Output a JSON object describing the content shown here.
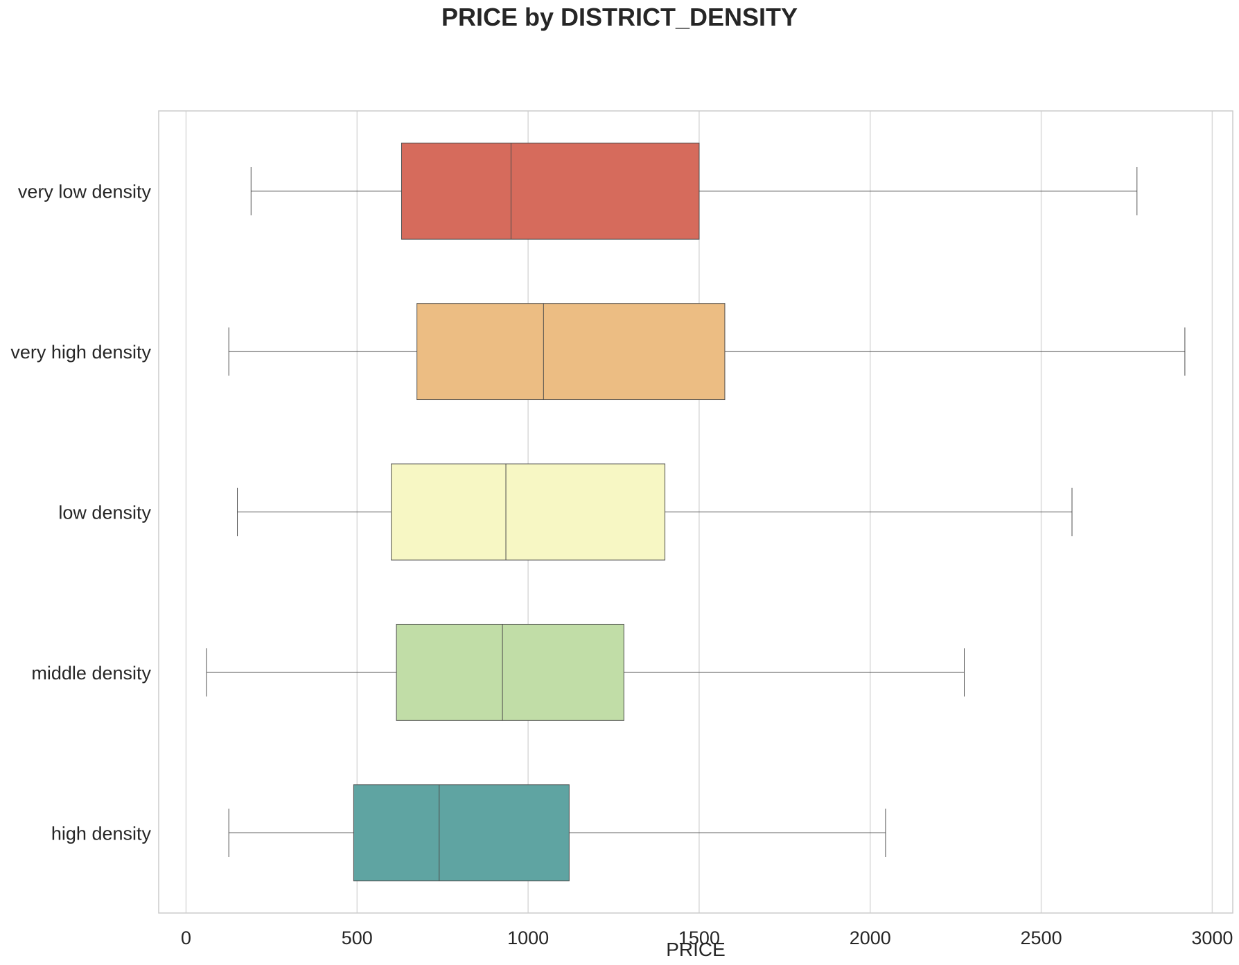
{
  "chart_data": {
    "type": "box",
    "orientation": "horizontal",
    "title": "PRICE by DISTRICT_DENSITY",
    "xlabel": "PRICE",
    "ylabel": "",
    "xlim": [
      -80,
      3060
    ],
    "xticks": [
      0,
      500,
      1000,
      1500,
      2000,
      2500,
      3000
    ],
    "grid": "x",
    "categories": [
      "very low density",
      "very high density",
      "low density",
      "middle density",
      "high density"
    ],
    "series": [
      {
        "category": "very low density",
        "whisker_low": 190,
        "q1": 630,
        "median": 950,
        "q3": 1500,
        "whisker_high": 2780,
        "color": "#d66b5c"
      },
      {
        "category": "very high density",
        "whisker_low": 125,
        "q1": 675,
        "median": 1045,
        "q3": 1575,
        "whisker_high": 2920,
        "color": "#ecbd83"
      },
      {
        "category": "low density",
        "whisker_low": 150,
        "q1": 600,
        "median": 935,
        "q3": 1400,
        "whisker_high": 2590,
        "color": "#f7f7c4"
      },
      {
        "category": "middle density",
        "whisker_low": 60,
        "q1": 615,
        "median": 925,
        "q3": 1280,
        "whisker_high": 2275,
        "color": "#c1dda7"
      },
      {
        "category": "high density",
        "whisker_low": 125,
        "q1": 490,
        "median": 740,
        "q3": 1120,
        "whisker_high": 2045,
        "color": "#5fa4a2"
      }
    ]
  }
}
